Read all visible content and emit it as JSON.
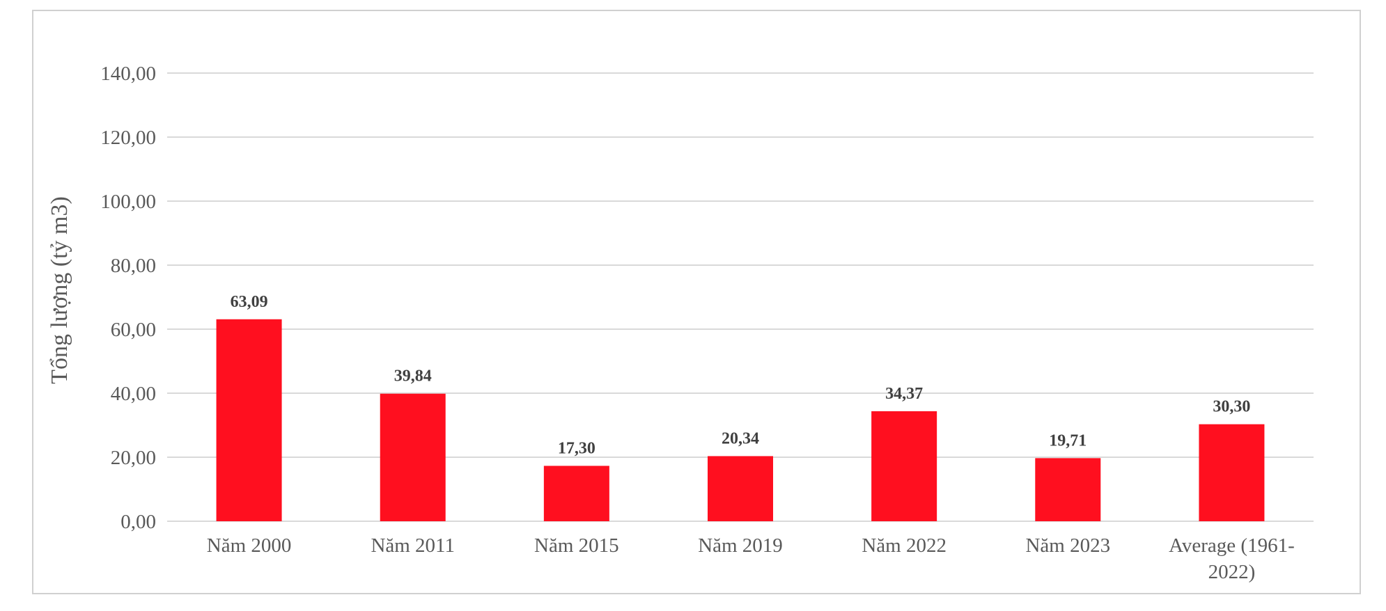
{
  "chart_data": {
    "type": "bar",
    "title": "",
    "xlabel": "",
    "ylabel": "Tổng lượng (tỷ m3)",
    "ylim": [
      0,
      140
    ],
    "yticks": [
      0,
      20,
      40,
      60,
      80,
      100,
      120,
      140
    ],
    "ytick_labels": [
      "0,00",
      "20,00",
      "40,00",
      "60,00",
      "80,00",
      "100,00",
      "120,00",
      "140,00"
    ],
    "categories": [
      [
        "Năm 2000"
      ],
      [
        "Năm 2011"
      ],
      [
        "Năm 2015"
      ],
      [
        "Năm 2019"
      ],
      [
        "Năm 2022"
      ],
      [
        "Năm 2023"
      ],
      [
        "Average (1961-",
        "2022)"
      ]
    ],
    "values": [
      63.09,
      39.84,
      17.3,
      20.34,
      34.37,
      19.71,
      30.3
    ],
    "value_labels": [
      "63,09",
      "39,84",
      "17,30",
      "20,34",
      "34,37",
      "19,71",
      "30,30"
    ],
    "grid": true,
    "legend": "none",
    "colors": {
      "bar": "#ff0f1f",
      "grid": "#d9d9d9",
      "text": "#595959",
      "data_label": "#404040"
    }
  }
}
